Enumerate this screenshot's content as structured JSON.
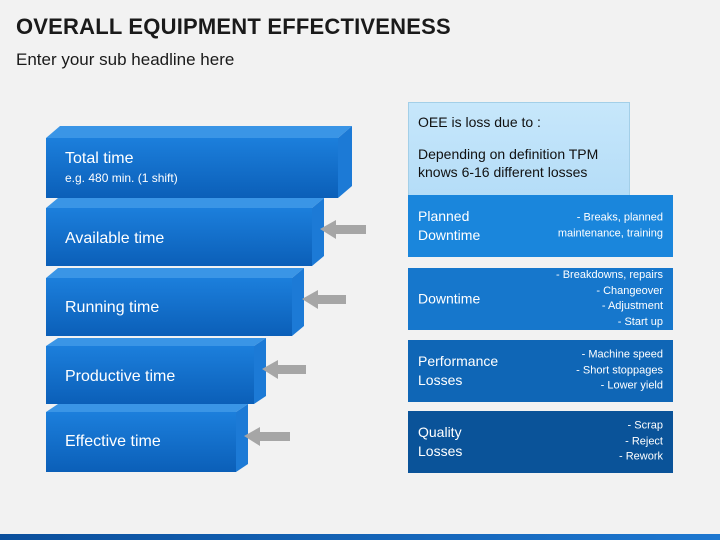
{
  "header": {
    "title": "OVERALL EQUIPMENT EFFECTIVENESS",
    "subtitle": "Enter your sub headline here"
  },
  "stairs": [
    {
      "label": "Total time",
      "sub": "e.g. 480 min. (1 shift)"
    },
    {
      "label": "Available time"
    },
    {
      "label": "Running time"
    },
    {
      "label": "Productive time"
    },
    {
      "label": "Effective time"
    }
  ],
  "loss_panel": {
    "line1": "OEE is loss due to :",
    "line2": "Depending on definition TPM knows 6-16 different losses"
  },
  "categories": [
    {
      "name": "Planned Downtime",
      "items": [
        "Breaks, planned maintenance, training"
      ],
      "color": "#1a86dc"
    },
    {
      "name": "Downtime",
      "items": [
        "Breakdowns, repairs",
        "Changeover",
        "Adjustment",
        "Start up"
      ],
      "color": "#1677cc"
    },
    {
      "name": "Performance Losses",
      "items": [
        "Machine speed",
        "Short stoppages",
        "Lower yield"
      ],
      "color": "#0f66b6"
    },
    {
      "name": "Quality Losses",
      "items": [
        "Scrap",
        "Reject",
        "Rework"
      ],
      "color": "#0a5399"
    }
  ],
  "colors": {
    "block_front": "#0f6ccb",
    "block_top": "#3a95e6",
    "block_side": "#1f7fdc",
    "arrow": "#a6a6a6"
  }
}
